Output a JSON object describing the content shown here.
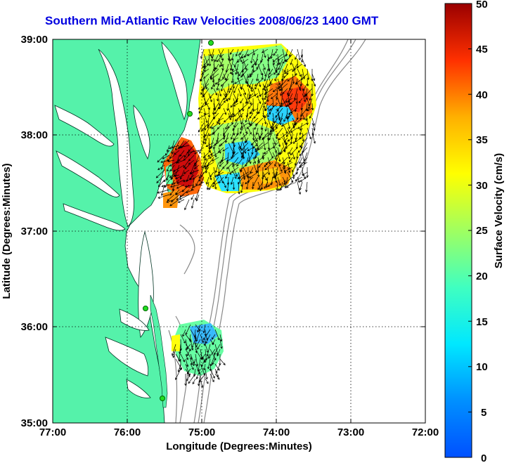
{
  "title": "Southern Mid-Atlantic Raw Velocities 2008/06/23 1400 GMT",
  "xlabel": "Longitude (Degrees:Minutes)",
  "ylabel": "Latitude (Degrees:Minutes)",
  "x_ticks": [
    "77:00",
    "76:00",
    "75:00",
    "74:00",
    "73:00",
    "72:00"
  ],
  "y_ticks": [
    "39:00",
    "38:00",
    "37:00",
    "36:00",
    "35:00"
  ],
  "colorbar": {
    "label": "Surface Velocity (cm/s)",
    "ticks": [
      "0",
      "5",
      "10",
      "15",
      "20",
      "25",
      "30",
      "35",
      "40",
      "45",
      "50"
    ],
    "min": 0,
    "max": 50
  },
  "colors": {
    "title": "#0000e0",
    "land": "#55f2aa",
    "station": "#22dd22",
    "bathymetry": "#888888"
  },
  "map": {
    "lon_range": [
      -77,
      -72
    ],
    "lat_range": [
      35,
      39
    ],
    "grid": true,
    "colormap": "jet"
  }
}
